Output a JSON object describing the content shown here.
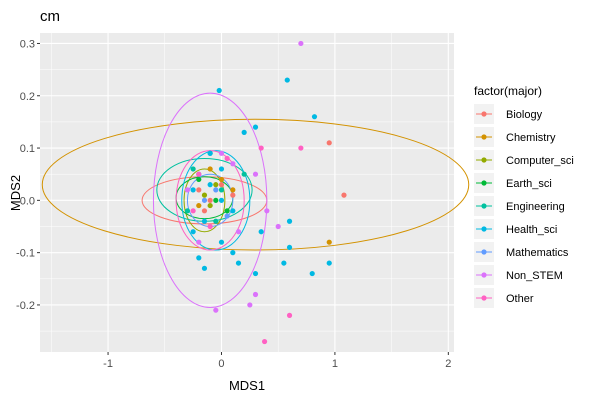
{
  "chart_data": {
    "type": "scatter",
    "title": "cm",
    "xlabel": "MDS1",
    "ylabel": "MDS2",
    "xlim": [
      -1.6,
      2.05
    ],
    "ylim": [
      -0.29,
      0.32
    ],
    "x_ticks": [
      -1,
      0,
      1,
      2
    ],
    "x_tick_labels": [
      "-1",
      "0",
      "1",
      "2"
    ],
    "y_ticks": [
      -0.2,
      -0.1,
      0.0,
      0.1,
      0.2,
      0.3
    ],
    "y_tick_labels": [
      "-0.2",
      "-0.1",
      "0.0",
      "0.1",
      "0.2",
      "0.3"
    ],
    "grid": true,
    "legend": {
      "title": "factor(major)",
      "position": "right",
      "entries": [
        "Biology",
        "Chemistry",
        "Computer_sci",
        "Earth_sci",
        "Engineering",
        "Health_sci",
        "Mathematics",
        "Non_STEM",
        "Other"
      ]
    },
    "series": [
      {
        "name": "Biology",
        "color": "#F8766D",
        "ellipse": {
          "cx": -0.15,
          "cy": 0.0,
          "rx": 0.55,
          "ry": 0.045
        },
        "points": [
          [
            -0.2,
            0.02
          ],
          [
            -0.1,
            0.0
          ],
          [
            0.1,
            0.01
          ],
          [
            1.08,
            0.01
          ],
          [
            0.95,
            0.11
          ],
          [
            -0.15,
            -0.02
          ],
          [
            0.0,
            0.03
          ]
        ]
      },
      {
        "name": "Chemistry",
        "color": "#D39200",
        "ellipse": {
          "cx": 0.3,
          "cy": 0.03,
          "rx": 1.88,
          "ry": 0.125
        },
        "points": [
          [
            -0.1,
            0.06
          ],
          [
            0.0,
            0.04
          ],
          [
            0.95,
            -0.08
          ],
          [
            -0.2,
            -0.01
          ],
          [
            0.1,
            0.02
          ]
        ]
      },
      {
        "name": "Computer_sci",
        "color": "#93AA00",
        "ellipse": {
          "cx": -0.15,
          "cy": 0.0,
          "rx": 0.18,
          "ry": 0.06
        },
        "points": [
          [
            -0.15,
            0.01
          ],
          [
            -0.1,
            -0.01
          ],
          [
            -0.05,
            0.03
          ]
        ]
      },
      {
        "name": "Earth_sci",
        "color": "#00BA38",
        "ellipse": {
          "cx": -0.15,
          "cy": 0.005,
          "rx": 0.25,
          "ry": 0.04
        },
        "points": [
          [
            -0.2,
            0.04
          ],
          [
            -0.05,
            0.0
          ],
          [
            0.05,
            -0.02
          ]
        ]
      },
      {
        "name": "Engineering",
        "color": "#00C19F",
        "ellipse": {
          "cx": -0.15,
          "cy": 0.02,
          "rx": 0.42,
          "ry": 0.06
        },
        "points": [
          [
            -0.25,
            0.06
          ],
          [
            -0.1,
            0.09
          ],
          [
            0.0,
            0.02
          ],
          [
            -0.3,
            -0.02
          ],
          [
            0.2,
            0.05
          ],
          [
            -0.05,
            -0.04
          ]
        ]
      },
      {
        "name": "Health_sci",
        "color": "#00B9E3",
        "ellipse": {
          "cx": -0.05,
          "cy": 0.0,
          "rx": 0.3,
          "ry": 0.095
        },
        "points": [
          [
            -0.02,
            0.21
          ],
          [
            0.58,
            0.23
          ],
          [
            0.82,
            0.16
          ],
          [
            0.3,
            0.14
          ],
          [
            0.2,
            0.13
          ],
          [
            -0.1,
            0.09
          ],
          [
            0.0,
            0.06
          ],
          [
            -0.2,
            0.05
          ],
          [
            -0.25,
            0.02
          ],
          [
            -0.1,
            0.03
          ],
          [
            0.0,
            0.0
          ],
          [
            0.1,
            -0.02
          ],
          [
            -0.15,
            -0.04
          ],
          [
            -0.25,
            -0.06
          ],
          [
            0.0,
            -0.08
          ],
          [
            0.1,
            -0.1
          ],
          [
            -0.2,
            -0.11
          ],
          [
            -0.15,
            -0.13
          ],
          [
            0.15,
            -0.12
          ],
          [
            0.3,
            -0.14
          ],
          [
            0.55,
            -0.12
          ],
          [
            0.6,
            -0.09
          ],
          [
            0.8,
            -0.14
          ],
          [
            0.95,
            -0.12
          ],
          [
            0.35,
            -0.06
          ],
          [
            0.6,
            -0.04
          ]
        ]
      },
      {
        "name": "Mathematics",
        "color": "#619CFF",
        "ellipse": {
          "cx": -0.1,
          "cy": 0.0,
          "rx": 0.2,
          "ry": 0.05
        },
        "points": [
          [
            -0.05,
            0.02
          ],
          [
            0.05,
            -0.03
          ],
          [
            -0.15,
            0.0
          ]
        ]
      },
      {
        "name": "Non_STEM",
        "color": "#DB72FB",
        "ellipse": {
          "cx": -0.1,
          "cy": 0.0,
          "rx": 0.5,
          "ry": 0.205
        },
        "points": [
          [
            0.7,
            0.3
          ],
          [
            0.3,
            0.05
          ],
          [
            0.5,
            -0.05
          ],
          [
            0.3,
            -0.18
          ],
          [
            0.25,
            -0.2
          ],
          [
            -0.05,
            -0.21
          ],
          [
            -0.3,
            0.02
          ],
          [
            0.0,
            0.09
          ],
          [
            0.15,
            -0.06
          ],
          [
            -0.2,
            -0.08
          ],
          [
            0.4,
            -0.02
          ],
          [
            0.1,
            0.07
          ]
        ]
      },
      {
        "name": "Other",
        "color": "#FF61C3",
        "ellipse": {
          "cx": -0.1,
          "cy": 0.0,
          "rx": 0.3,
          "ry": 0.095
        },
        "points": [
          [
            0.35,
            0.1
          ],
          [
            0.7,
            0.1
          ],
          [
            0.6,
            -0.22
          ],
          [
            0.38,
            -0.27
          ],
          [
            -0.2,
            0.05
          ],
          [
            -0.25,
            -0.02
          ],
          [
            0.05,
            0.08
          ],
          [
            -0.1,
            -0.05
          ]
        ]
      }
    ]
  }
}
